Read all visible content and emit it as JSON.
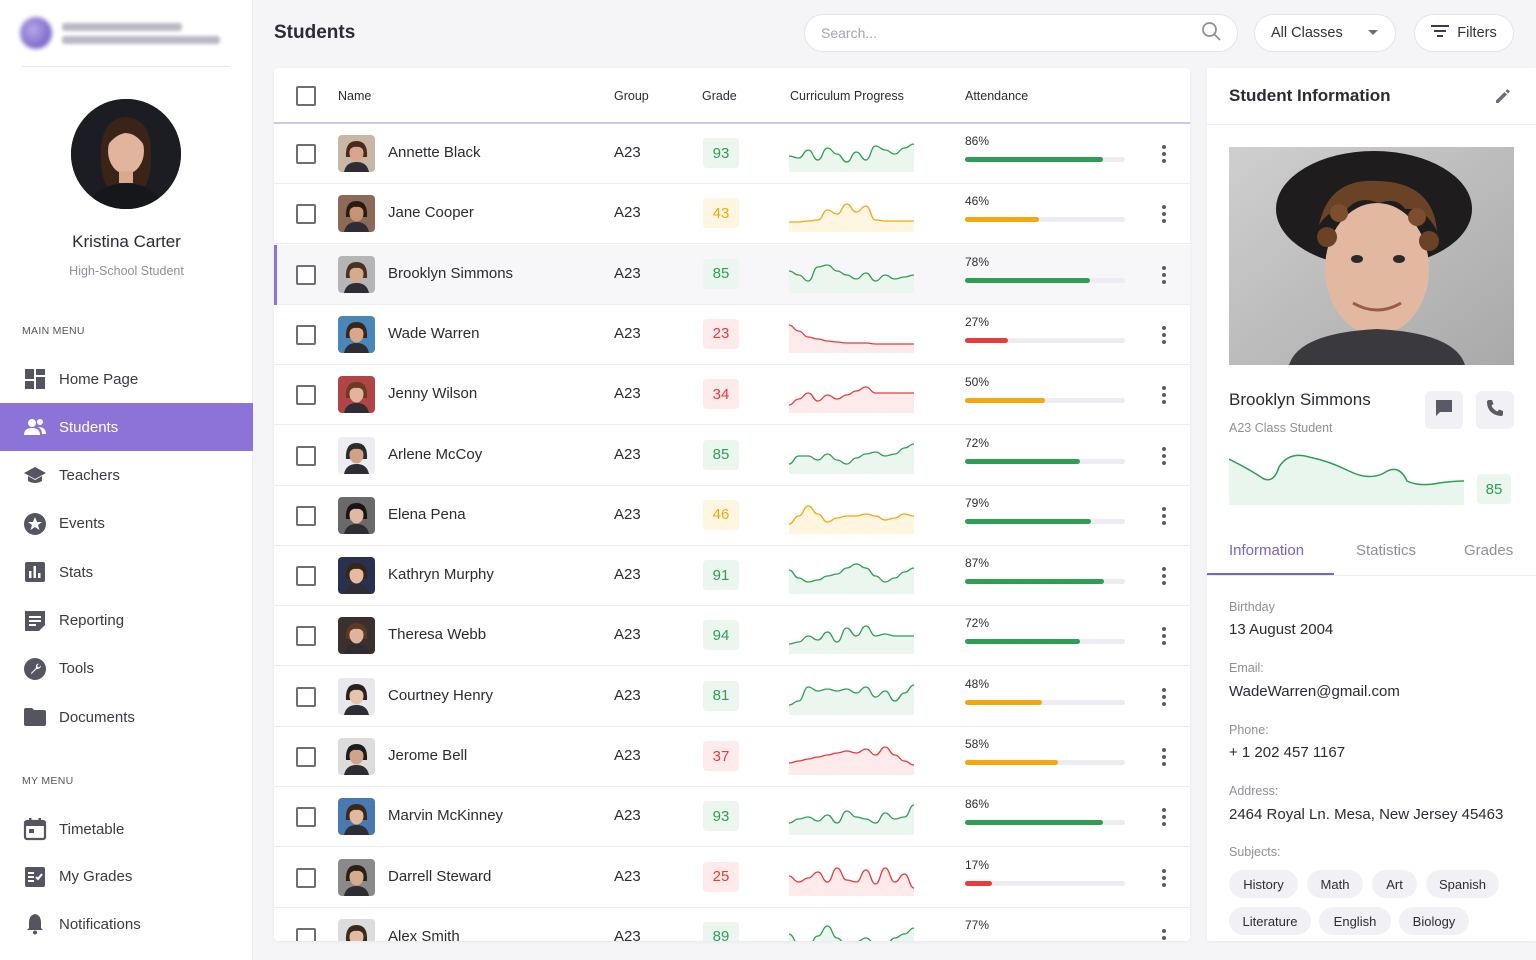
{
  "sidebar": {
    "profile": {
      "name": "Kristina Carter",
      "role": "High-School Student"
    },
    "main_menu_title": "MAIN MENU",
    "main_menu": [
      {
        "label": "Home Page",
        "icon": "dashboard-icon"
      },
      {
        "label": "Students",
        "icon": "people-icon",
        "active": true
      },
      {
        "label": "Teachers",
        "icon": "graduation-cap-icon"
      },
      {
        "label": "Events",
        "icon": "star-icon"
      },
      {
        "label": "Stats",
        "icon": "bar-chart-icon"
      },
      {
        "label": "Reporting",
        "icon": "report-icon"
      },
      {
        "label": "Tools",
        "icon": "wrench-icon"
      },
      {
        "label": "Documents",
        "icon": "folder-icon"
      }
    ],
    "my_menu_title": "MY MENU",
    "my_menu": [
      {
        "label": "Timetable",
        "icon": "calendar-icon"
      },
      {
        "label": "My Grades",
        "icon": "grades-list-icon"
      },
      {
        "label": "Notifications",
        "icon": "bell-icon"
      }
    ]
  },
  "header": {
    "title": "Students",
    "search_placeholder": "Search...",
    "class_select": "All Classes",
    "filters_label": "Filters"
  },
  "table": {
    "columns": [
      "Name",
      "Group",
      "Grade",
      "Curriculum Progress",
      "Attendance"
    ],
    "rows": [
      {
        "name": "Annette Black",
        "group": "A23",
        "grade": "93",
        "level": "good",
        "attendance": "86%",
        "attendance_value": 86,
        "spark": [
          16,
          18,
          10,
          20,
          8,
          14,
          22,
          12,
          20,
          6,
          10,
          14,
          8,
          4
        ],
        "skin": "#d9a48c",
        "hair": "#4a2a1e",
        "bg": "#c9b6a5"
      },
      {
        "name": "Jane Cooper",
        "group": "A23",
        "grade": "43",
        "level": "mid",
        "attendance": "46%",
        "attendance_value": 46,
        "spark": [
          22,
          22,
          21,
          20,
          10,
          14,
          4,
          12,
          6,
          20,
          21,
          21,
          21,
          21
        ],
        "skin": "#c89274",
        "hair": "#2a1a12",
        "bg": "#8b6b58"
      },
      {
        "name": "Brooklyn Simmons",
        "group": "A23",
        "grade": "85",
        "level": "good",
        "attendance": "78%",
        "attendance_value": 78,
        "spark": [
          10,
          14,
          20,
          6,
          4,
          10,
          14,
          18,
          12,
          20,
          14,
          18,
          16,
          14
        ],
        "skin": "#d6aa8d",
        "hair": "#4a3020",
        "bg": "#b5b5b5",
        "selected": true
      },
      {
        "name": "Wade Warren",
        "group": "A23",
        "grade": "23",
        "level": "bad",
        "attendance": "27%",
        "attendance_value": 27,
        "spark": [
          4,
          10,
          16,
          18,
          20,
          21,
          22,
          22,
          22,
          23,
          23,
          23,
          23,
          23
        ],
        "skin": "#d8a988",
        "hair": "#3a2618",
        "bg": "#4a86b8"
      },
      {
        "name": "Jenny Wilson",
        "group": "A23",
        "grade": "34",
        "level": "bad",
        "attendance": "50%",
        "attendance_value": 50,
        "spark": [
          24,
          18,
          12,
          20,
          14,
          18,
          14,
          10,
          6,
          12,
          12,
          12,
          12,
          12
        ],
        "skin": "#e2b59a",
        "hair": "#6a3a22",
        "bg": "#b04545"
      },
      {
        "name": "Arlene McCoy",
        "group": "A23",
        "grade": "85",
        "level": "good",
        "attendance": "72%",
        "attendance_value": 72,
        "spark": [
          22,
          14,
          14,
          18,
          12,
          18,
          22,
          16,
          12,
          10,
          14,
          12,
          6,
          2
        ],
        "skin": "#d2a286",
        "hair": "#2c2c2c",
        "bg": "#ececf2"
      },
      {
        "name": "Elena Pena",
        "group": "A23",
        "grade": "46",
        "level": "mid",
        "attendance": "79%",
        "attendance_value": 79,
        "spark": [
          22,
          14,
          4,
          12,
          20,
          16,
          14,
          14,
          12,
          14,
          18,
          16,
          12,
          14
        ],
        "skin": "#e0b9a3",
        "hair": "#1a1414",
        "bg": "#6a6a6a"
      },
      {
        "name": "Kathryn Murphy",
        "group": "A23",
        "grade": "91",
        "level": "good",
        "attendance": "87%",
        "attendance_value": 87,
        "spark": [
          8,
          16,
          20,
          18,
          14,
          12,
          6,
          2,
          6,
          14,
          20,
          16,
          10,
          6
        ],
        "skin": "#e4bba0",
        "hair": "#3a2414",
        "bg": "#2a3050"
      },
      {
        "name": "Theresa Webb",
        "group": "A23",
        "grade": "94",
        "level": "good",
        "attendance": "72%",
        "attendance_value": 72,
        "spark": [
          22,
          20,
          14,
          18,
          10,
          20,
          6,
          14,
          4,
          14,
          12,
          14,
          14,
          14
        ],
        "skin": "#e0b49b",
        "hair": "#5a3a22",
        "bg": "#3a3030"
      },
      {
        "name": "Courtney Henry",
        "group": "A23",
        "grade": "81",
        "level": "good",
        "attendance": "48%",
        "attendance_value": 48,
        "spark": [
          22,
          18,
          4,
          8,
          6,
          8,
          6,
          10,
          4,
          14,
          8,
          18,
          10,
          2
        ],
        "skin": "#e6c3ad",
        "hair": "#2a2020",
        "bg": "#e8e8ec"
      },
      {
        "name": "Jerome Bell",
        "group": "A23",
        "grade": "37",
        "level": "bad",
        "attendance": "58%",
        "attendance_value": 58,
        "spark": [
          20,
          18,
          16,
          14,
          12,
          10,
          8,
          10,
          6,
          12,
          4,
          12,
          18,
          22
        ],
        "skin": "#d0a48a",
        "hair": "#1c1c1c",
        "bg": "#dcdcdc"
      },
      {
        "name": "Marvin McKinney",
        "group": "A23",
        "grade": "93",
        "level": "good",
        "attendance": "86%",
        "attendance_value": 86,
        "spark": [
          20,
          16,
          14,
          18,
          12,
          20,
          8,
          14,
          16,
          20,
          10,
          16,
          14,
          2
        ],
        "skin": "#e1b99e",
        "hair": "#3a2818",
        "bg": "#4a78b0"
      },
      {
        "name": "Darrell Steward",
        "group": "A23",
        "grade": "25",
        "level": "bad",
        "attendance": "17%",
        "attendance_value": 17,
        "spark": [
          12,
          18,
          14,
          8,
          18,
          4,
          16,
          18,
          6,
          20,
          4,
          18,
          10,
          24
        ],
        "skin": "#d9ab8e",
        "hair": "#2a2018",
        "bg": "#8a8a8a"
      },
      {
        "name": "Alex Smith",
        "group": "A23",
        "grade": "89",
        "level": "good",
        "attendance": "77%",
        "attendance_value": 77,
        "spark": [
          10,
          20,
          22,
          12,
          2,
          14,
          22,
          18,
          14,
          20,
          22,
          14,
          10,
          4
        ],
        "skin": "#e2bba2",
        "hair": "#3a2a1e",
        "bg": "#dcdcdc"
      }
    ]
  },
  "detail": {
    "title": "Student Information",
    "name": "Brooklyn Simmons",
    "subtitle": "A23 Class Student",
    "grade": "85",
    "tabs": [
      "Information",
      "Statistics",
      "Grades"
    ],
    "active_tab": "Information",
    "birthday_label": "Birthday",
    "birthday": "13 August 2004",
    "email_label": "Email:",
    "email": "WadeWarren@gmail.com",
    "phone_label": "Phone:",
    "phone": "+ 1 202 457 1167",
    "address_label": "Address:",
    "address": "2464 Royal Ln. Mesa, New Jersey 45463",
    "subjects_label": "Subjects:",
    "subjects": [
      "History",
      "Math",
      "Art",
      "Spanish",
      "Literature",
      "English",
      "Biology"
    ]
  },
  "colors": {
    "accent": "#8b73d8",
    "good": "#2e9e55",
    "good_bg": "#eaf6ee",
    "mid": "#f5a70f",
    "mid_bg": "#fff6e2",
    "bad": "#e83b3b",
    "bad_bg": "#fdeaea"
  }
}
